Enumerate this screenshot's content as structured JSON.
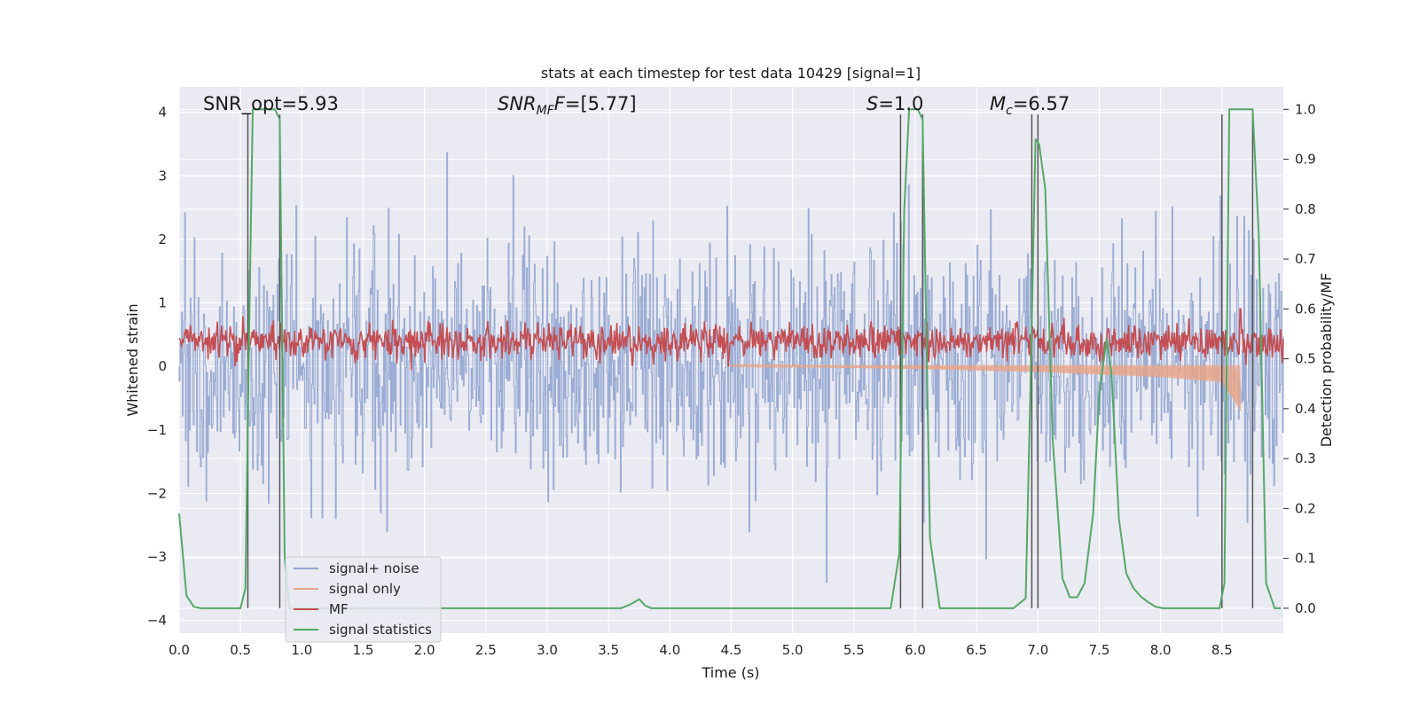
{
  "chart_data": {
    "type": "line",
    "title": "stats at each timestep for test data 10429 [signal=1]",
    "xlabel": "Time (s)",
    "ylabel": "Whitened strain",
    "ylabel_right": "Detection probability/MF",
    "xlim": [
      0,
      9.0
    ],
    "ylim": [
      -4.2,
      4.4
    ],
    "ylim_right": [
      -0.05,
      1.045
    ],
    "x_ticks": [
      "0.0",
      "0.5",
      "1.0",
      "1.5",
      "2.0",
      "2.5",
      "3.0",
      "3.5",
      "4.0",
      "4.5",
      "5.0",
      "5.5",
      "6.0",
      "6.5",
      "7.0",
      "7.5",
      "8.0",
      "8.5"
    ],
    "y_ticks": [
      "4",
      "3",
      "2",
      "1",
      "0",
      "−1",
      "−2",
      "−3",
      "−4"
    ],
    "y_ticks_right": [
      "1.0",
      "0.9",
      "0.8",
      "0.7",
      "0.6",
      "0.5",
      "0.4",
      "0.3",
      "0.2",
      "0.1",
      "0.0"
    ],
    "grid": true,
    "legend_position": "lower-left",
    "annotations": {
      "snr_opt": "SNR_opt=5.93",
      "snr_mf_main": "SNR",
      "snr_mf_sub": "MF",
      "snr_mf_rest": "=[5.77]",
      "s_main": "S",
      "s_rest": "=1.0",
      "mc_main": "M",
      "mc_sub": "c",
      "mc_rest": "=6.57"
    },
    "series": [
      {
        "name": "signal+ noise",
        "color": "#92a6d0",
        "note": "dense whitened noise, amplitude roughly within ±2.5, peaks to ±3.6"
      },
      {
        "name": "signal only",
        "color": "#e8a588",
        "envelope": {
          "x": [
            4.5,
            6.0,
            7.0,
            8.0,
            8.5,
            8.65
          ],
          "lower": [
            0.0,
            -0.04,
            -0.09,
            -0.17,
            -0.25,
            -0.7
          ]
        }
      },
      {
        "name": "MF",
        "color": "#c44e52",
        "baseline": 0.535,
        "spread": 0.03,
        "spike": {
          "x": 8.65,
          "y": 0.6
        }
      },
      {
        "name": "signal statistics",
        "color": "#55a868",
        "x": [
          0.0,
          0.06,
          0.12,
          0.18,
          0.3,
          0.5,
          0.54,
          0.57,
          0.6,
          0.64,
          0.78,
          0.82,
          0.86,
          0.9,
          0.95,
          1.0,
          2.0,
          3.0,
          3.6,
          3.68,
          3.75,
          3.8,
          3.85,
          4.0,
          5.0,
          5.8,
          5.87,
          5.91,
          5.95,
          6.02,
          6.06,
          6.12,
          6.2,
          6.5,
          6.8,
          6.9,
          6.94,
          6.98,
          7.01,
          7.06,
          7.12,
          7.2,
          7.26,
          7.32,
          7.38,
          7.45,
          7.5,
          7.56,
          7.6,
          7.66,
          7.72,
          7.78,
          7.84,
          7.9,
          7.96,
          8.02,
          8.1,
          8.3,
          8.48,
          8.52,
          8.56,
          8.6,
          8.7,
          8.75,
          8.8,
          8.86,
          8.93,
          8.98
        ],
        "y": [
          0.19,
          0.025,
          0.003,
          0.0,
          0.0,
          0.0,
          0.04,
          0.55,
          1.0,
          1.0,
          1.0,
          0.98,
          0.1,
          0.0,
          0.0,
          0.0,
          0.0,
          0.0,
          0.0,
          0.008,
          0.018,
          0.005,
          0.0,
          0.0,
          0.0,
          0.0,
          0.11,
          0.8,
          1.0,
          1.0,
          0.98,
          0.14,
          0.0,
          0.0,
          0.0,
          0.02,
          0.45,
          0.94,
          0.93,
          0.84,
          0.34,
          0.06,
          0.022,
          0.022,
          0.05,
          0.19,
          0.43,
          0.54,
          0.47,
          0.18,
          0.07,
          0.04,
          0.023,
          0.012,
          0.003,
          0.0,
          0.0,
          0.0,
          0.0,
          0.05,
          1.0,
          1.0,
          1.0,
          1.0,
          0.75,
          0.05,
          0.0,
          0.0
        ]
      }
    ],
    "vertical_lines": [
      {
        "x": 0.56,
        "y_top": 0.99
      },
      {
        "x": 0.82,
        "y_top": 0.99
      },
      {
        "x": 5.88,
        "y_top": 0.99
      },
      {
        "x": 6.06,
        "y_top": 0.99
      },
      {
        "x": 6.95,
        "y_top": 0.99
      },
      {
        "x": 7.0,
        "y_top": 0.99
      },
      {
        "x": 8.5,
        "y_top": 0.99
      },
      {
        "x": 8.75,
        "y_top": 0.99
      }
    ]
  },
  "legend": {
    "items": [
      {
        "label": "signal+ noise",
        "color": "#92a6d0"
      },
      {
        "label": "signal only",
        "color": "#e8a588"
      },
      {
        "label": "MF",
        "color": "#c44e52"
      },
      {
        "label": "signal statistics",
        "color": "#55a868"
      }
    ]
  }
}
